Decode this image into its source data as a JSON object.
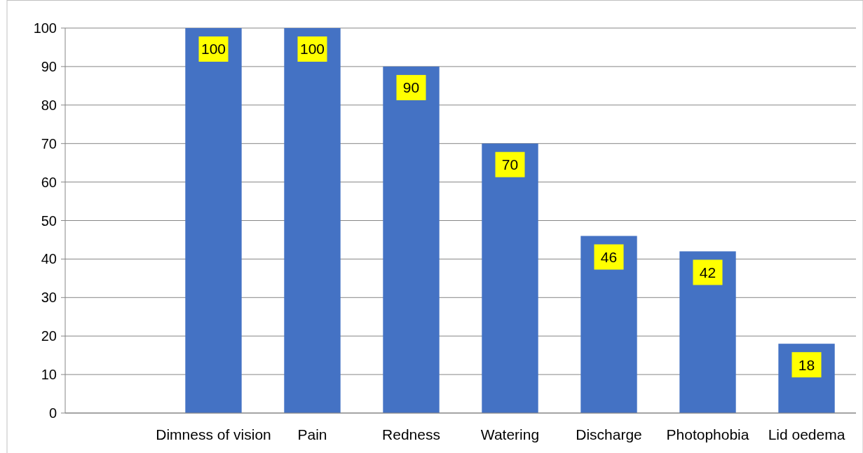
{
  "chart_data": {
    "type": "bar",
    "categories": [
      null,
      "Dimness of vision",
      "Pain",
      "Redness",
      "Watering",
      "Discharge",
      "Photophobia",
      "Lid oedema"
    ],
    "values": [
      null,
      100,
      100,
      90,
      70,
      46,
      42,
      18
    ],
    "color": "#4472c4",
    "ylim": [
      0,
      100
    ],
    "yticks": [
      0,
      10,
      20,
      30,
      40,
      50,
      60,
      70,
      80,
      90,
      100
    ],
    "grid": "y",
    "data_labels": true
  }
}
